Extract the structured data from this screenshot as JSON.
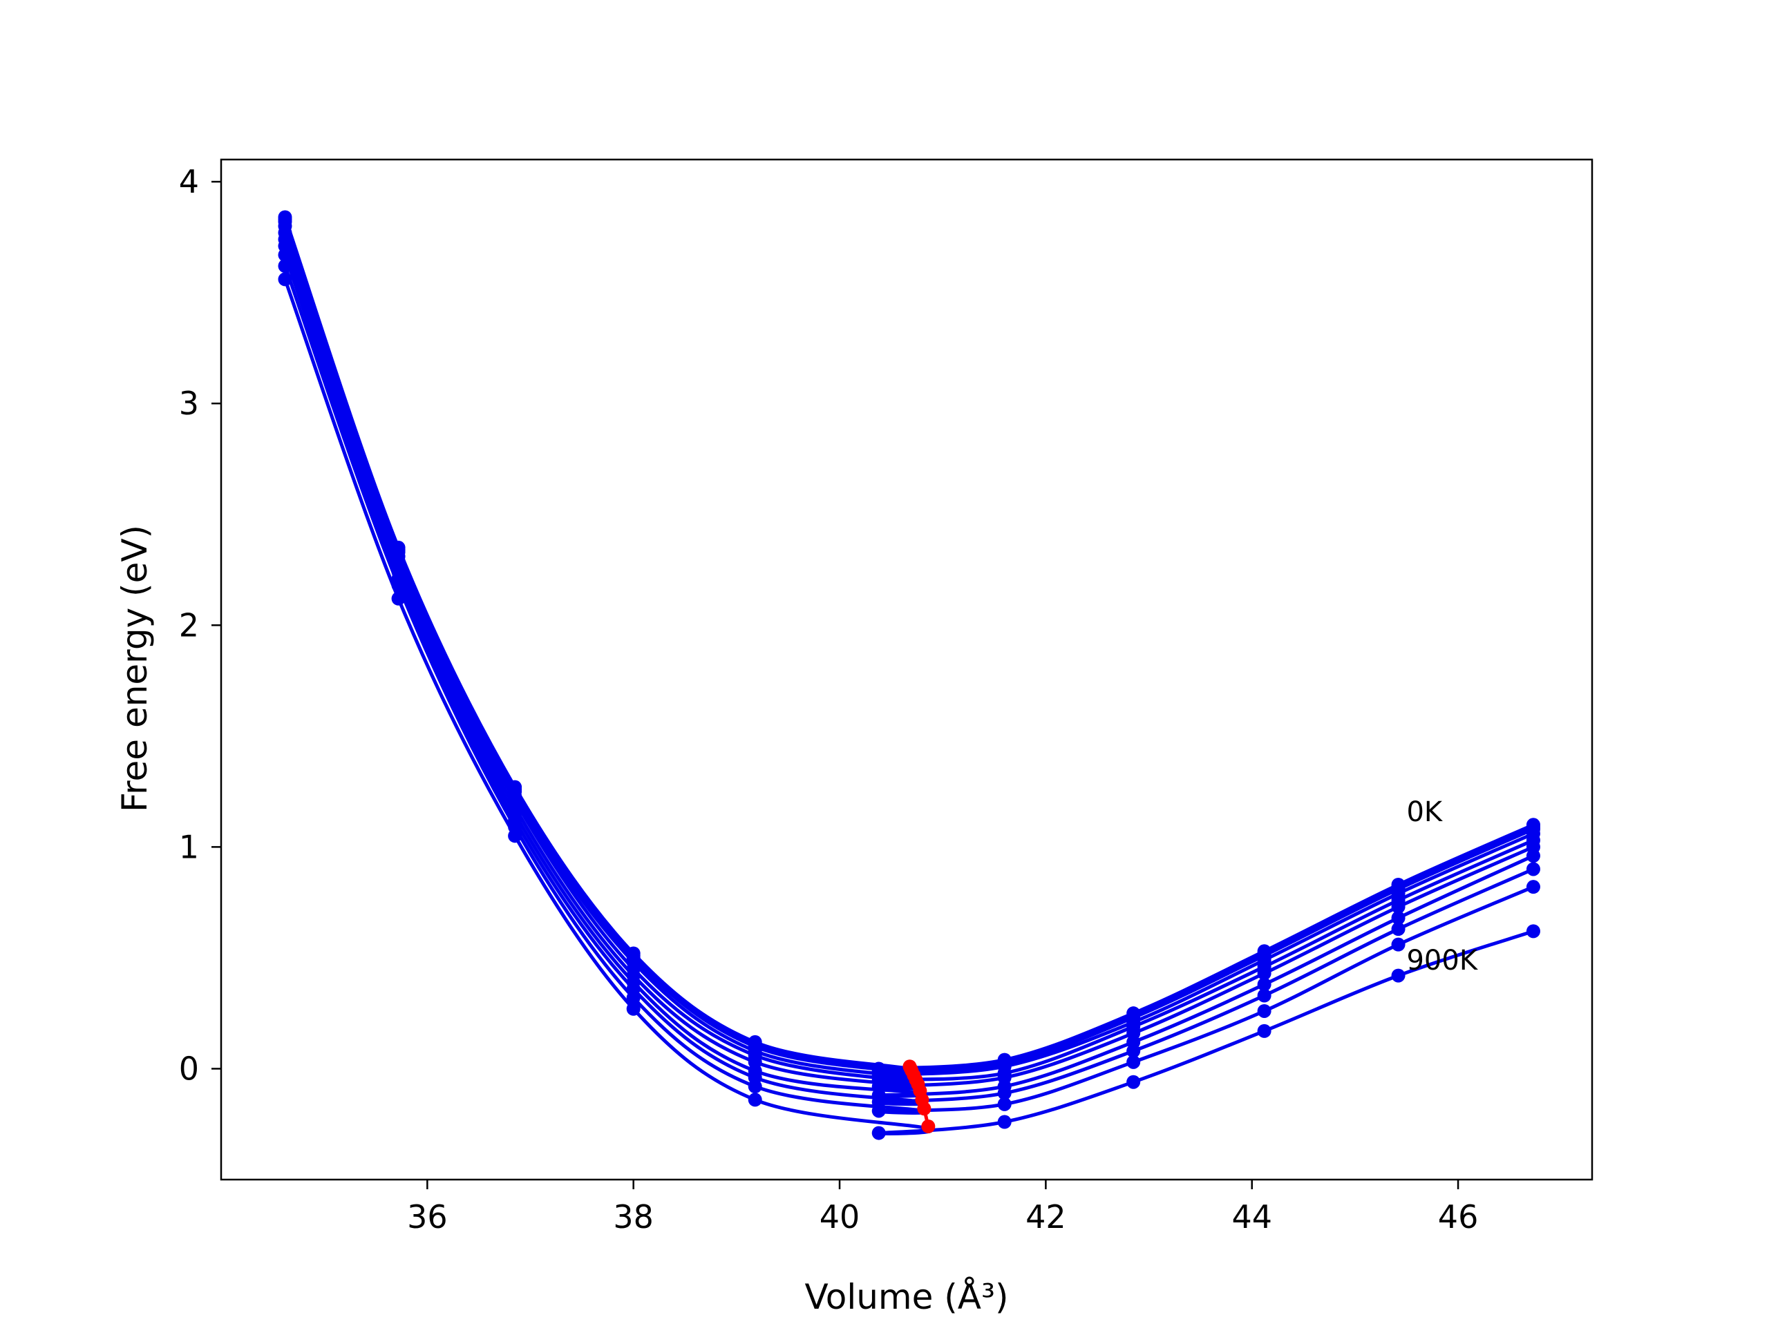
{
  "chart_data": {
    "type": "line",
    "xlabel": "Volume (Å³)",
    "ylabel": "Free energy (eV)",
    "xlim": [
      34.0,
      47.3
    ],
    "ylim": [
      -0.5,
      4.1
    ],
    "xticks": [
      36,
      38,
      40,
      42,
      44,
      46
    ],
    "yticks": [
      0,
      1,
      2,
      3,
      4
    ],
    "grid": false,
    "legend": "none",
    "curve_color": "#0000ee",
    "min_point_color": "#ff0000",
    "annotations": [
      {
        "text": "0K",
        "x": 45.5,
        "y": 1.16
      },
      {
        "text": "900K",
        "x": 45.5,
        "y": 0.49
      }
    ],
    "volumes": [
      34.62,
      35.72,
      36.85,
      38.0,
      39.18,
      40.38,
      41.6,
      42.85,
      44.12,
      45.42,
      46.73
    ],
    "series": [
      {
        "values": [
          3.84,
          2.35,
          1.27,
          0.52,
          0.12,
          0.0,
          0.04,
          0.25,
          0.53,
          0.83,
          1.1
        ],
        "min_v": 40.68,
        "min_e": 0.01
      },
      {
        "values": [
          3.83,
          2.34,
          1.26,
          0.51,
          0.11,
          -0.01,
          0.03,
          0.24,
          0.52,
          0.82,
          1.09
        ],
        "min_v": 40.69,
        "min_e": 0.0
      },
      {
        "values": [
          3.82,
          2.33,
          1.25,
          0.5,
          0.1,
          -0.02,
          0.02,
          0.23,
          0.51,
          0.81,
          1.08
        ],
        "min_v": 40.7,
        "min_e": -0.01
      },
      {
        "values": [
          3.8,
          2.31,
          1.23,
          0.48,
          0.08,
          -0.03,
          0.01,
          0.21,
          0.49,
          0.79,
          1.06
        ],
        "min_v": 40.72,
        "min_e": -0.03
      },
      {
        "values": [
          3.77,
          2.29,
          1.21,
          0.45,
          0.06,
          -0.05,
          -0.02,
          0.19,
          0.46,
          0.76,
          1.03
        ],
        "min_v": 40.74,
        "min_e": -0.05
      },
      {
        "values": [
          3.74,
          2.27,
          1.18,
          0.42,
          0.03,
          -0.08,
          -0.04,
          0.16,
          0.43,
          0.73,
          1.0
        ],
        "min_v": 40.76,
        "min_e": -0.07
      },
      {
        "values": [
          3.71,
          2.24,
          1.15,
          0.39,
          -0.01,
          -0.12,
          -0.08,
          0.12,
          0.38,
          0.68,
          0.96
        ],
        "min_v": 40.78,
        "min_e": -0.1
      },
      {
        "values": [
          3.67,
          2.21,
          1.12,
          0.36,
          -0.04,
          -0.15,
          -0.11,
          0.08,
          0.33,
          0.63,
          0.9
        ],
        "min_v": 40.8,
        "min_e": -0.14
      },
      {
        "values": [
          3.62,
          2.18,
          1.09,
          0.32,
          -0.08,
          -0.19,
          -0.16,
          0.03,
          0.26,
          0.56,
          0.82
        ],
        "min_v": 40.82,
        "min_e": -0.18
      },
      {
        "values": [
          3.56,
          2.12,
          1.05,
          0.27,
          -0.14,
          -0.29,
          -0.24,
          -0.06,
          0.17,
          0.42,
          0.62
        ],
        "min_v": 40.86,
        "min_e": -0.26
      }
    ]
  }
}
